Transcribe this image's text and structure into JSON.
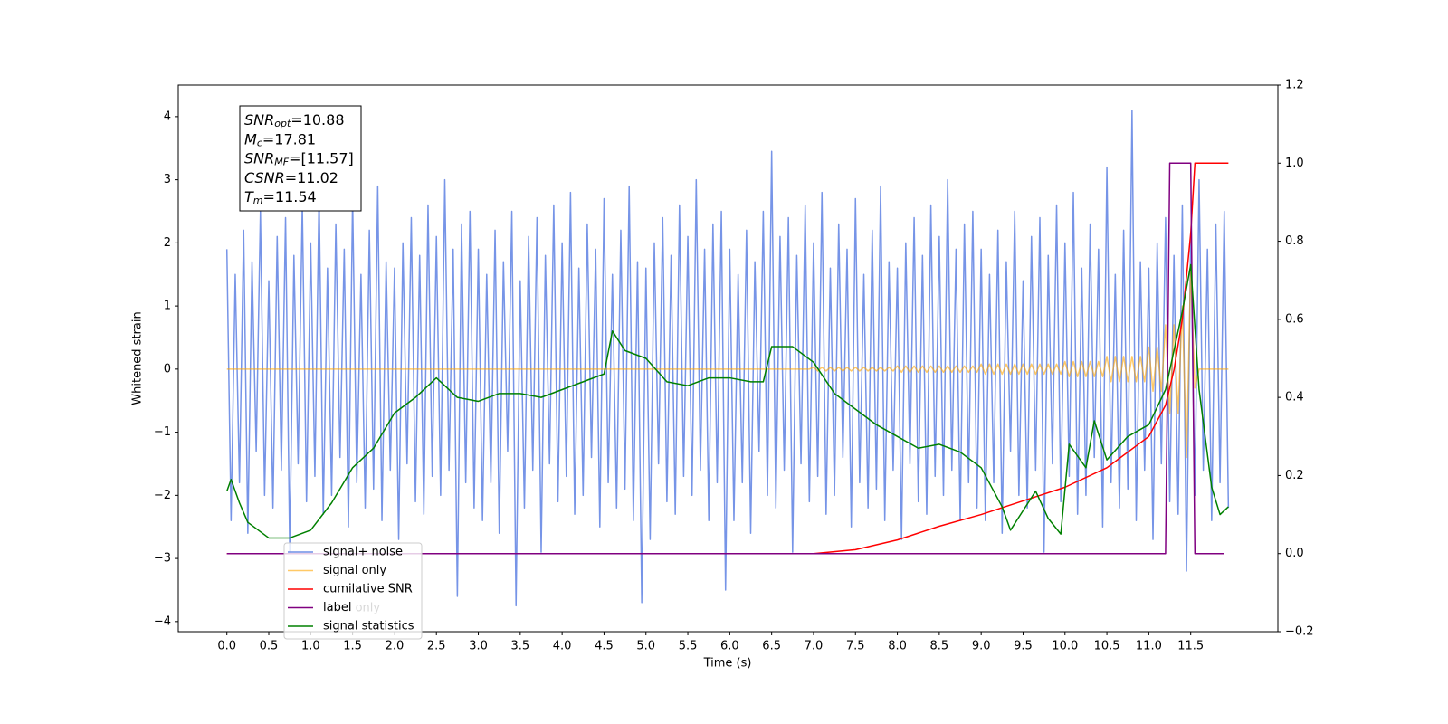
{
  "chart_data": {
    "type": "line",
    "xlabel": "Time (s)",
    "ylabel": "Whitened strain",
    "xlim": [
      -0.58,
      12.54
    ],
    "ylim": [
      -4.16,
      4.5
    ],
    "y2lim": [
      -0.2,
      1.2
    ],
    "xticks": [
      {
        "value": 0,
        "label": "0.0"
      },
      0.5,
      {
        "value": 1,
        "label": "1.0"
      },
      1.5,
      {
        "value": 2,
        "label": "2.0"
      },
      2.5,
      {
        "value": 3,
        "label": "3.0"
      },
      3.5,
      {
        "value": 4,
        "label": "4.0"
      },
      4.5,
      {
        "value": 5,
        "label": "5.0"
      },
      5.5,
      {
        "value": 6,
        "label": "6.0"
      },
      6.5,
      {
        "value": 7,
        "label": "7.0"
      },
      7.5,
      {
        "value": 8,
        "label": "8.0"
      },
      8.5,
      {
        "value": 9,
        "label": "9.0"
      },
      9.5,
      {
        "value": 10,
        "label": "10.0"
      },
      10.5,
      {
        "value": 11,
        "label": "11.0"
      },
      11.5
    ],
    "yticks": [
      {
        "value": -4,
        "label": "−4"
      },
      {
        "value": -3,
        "label": "−3"
      },
      {
        "value": -2,
        "label": "−2"
      },
      {
        "value": -1,
        "label": "−1"
      },
      0,
      1,
      2,
      3,
      4
    ],
    "y2ticks": [
      {
        "value": -0.2,
        "label": "−0.2"
      },
      {
        "value": 0,
        "label": "0.0"
      },
      0.2,
      0.4,
      0.6,
      0.8,
      {
        "value": 1,
        "label": "1.0"
      },
      1.2
    ],
    "annotation": [
      {
        "symbol": "SNR",
        "subscript": "opt",
        "text": "=10.88"
      },
      {
        "symbol": "M",
        "subscript": "c",
        "text": "=17.81"
      },
      {
        "symbol": "SNR",
        "subscript": "MF",
        "text": "=[11.57]"
      },
      {
        "symbol": "CSNR",
        "subscript": "",
        "text": "=11.02"
      },
      {
        "symbol": "T",
        "subscript": "m",
        "text": "=11.54"
      }
    ],
    "hidden_legend_text": "label only",
    "x": [
      0,
      0.05,
      0.1,
      0.15,
      0.2,
      0.25,
      0.3,
      0.35,
      0.4,
      0.45,
      0.5,
      0.55,
      0.6,
      0.65,
      0.7,
      0.75,
      0.8,
      0.85,
      0.9,
      0.95,
      1,
      1.05,
      1.1,
      1.15,
      1.2,
      1.25,
      1.3,
      1.35,
      1.4,
      1.45,
      1.5,
      1.55,
      1.6,
      1.65,
      1.7,
      1.75,
      1.8,
      1.85,
      1.9,
      1.95,
      2,
      2.05,
      2.1,
      2.15,
      2.2,
      2.25,
      2.3,
      2.35,
      2.4,
      2.45,
      2.5,
      2.55,
      2.6,
      2.65,
      2.7,
      2.75,
      2.8,
      2.85,
      2.9,
      2.95,
      3,
      3.05,
      3.1,
      3.15,
      3.2,
      3.25,
      3.3,
      3.35,
      3.4,
      3.45,
      3.5,
      3.55,
      3.6,
      3.65,
      3.7,
      3.75,
      3.8,
      3.85,
      3.9,
      3.95,
      4,
      4.05,
      4.1,
      4.15,
      4.2,
      4.25,
      4.3,
      4.35,
      4.4,
      4.45,
      4.5,
      4.55,
      4.6,
      4.65,
      4.7,
      4.75,
      4.8,
      4.85,
      4.9,
      4.95,
      5,
      5.05,
      5.1,
      5.15,
      5.2,
      5.25,
      5.3,
      5.35,
      5.4,
      5.45,
      5.5,
      5.55,
      5.6,
      5.65,
      5.7,
      5.75,
      5.8,
      5.85,
      5.9,
      5.95,
      6,
      6.05,
      6.1,
      6.15,
      6.2,
      6.25,
      6.3,
      6.35,
      6.4,
      6.45,
      6.5,
      6.55,
      6.6,
      6.65,
      6.7,
      6.75,
      6.8,
      6.85,
      6.9,
      6.95,
      7,
      7.05,
      7.1,
      7.15,
      7.2,
      7.25,
      7.3,
      7.35,
      7.4,
      7.45,
      7.5,
      7.55,
      7.6,
      7.65,
      7.7,
      7.75,
      7.8,
      7.85,
      7.9,
      7.95,
      8,
      8.05,
      8.1,
      8.15,
      8.2,
      8.25,
      8.3,
      8.35,
      8.4,
      8.45,
      8.5,
      8.55,
      8.6,
      8.65,
      8.7,
      8.75,
      8.8,
      8.85,
      8.9,
      8.95,
      9,
      9.05,
      9.1,
      9.15,
      9.2,
      9.25,
      9.3,
      9.35,
      9.4,
      9.45,
      9.5,
      9.55,
      9.6,
      9.65,
      9.7,
      9.75,
      9.8,
      9.85,
      9.9,
      9.95,
      10,
      10.05,
      10.1,
      10.15,
      10.2,
      10.25,
      10.3,
      10.35,
      10.4,
      10.45,
      10.5,
      10.55,
      10.6,
      10.65,
      10.7,
      10.75,
      10.8,
      10.85,
      10.9,
      10.95,
      11,
      11.05,
      11.1,
      11.15,
      11.2,
      11.25,
      11.3,
      11.35,
      11.4,
      11.45,
      11.5,
      11.55,
      11.6,
      11.65,
      11.7,
      11.75,
      11.8,
      11.85,
      11.9,
      11.95
    ],
    "series": [
      {
        "name": "signal+ noise",
        "color": "#6f8ee6",
        "values": [
          1.9,
          -2.4,
          1.5,
          -1.8,
          2.2,
          -2.6,
          1.7,
          -1.3,
          2.5,
          -2.0,
          1.4,
          -2.2,
          2.1,
          -1.6,
          2.4,
          -2.9,
          1.8,
          -1.5,
          2.6,
          -2.1,
          2.0,
          -1.7,
          2.8,
          -2.3,
          1.6,
          -2.0,
          2.3,
          -1.4,
          1.9,
          -2.5,
          2.7,
          -1.8,
          1.5,
          -2.2,
          2.2,
          -1.9,
          2.9,
          -2.4,
          1.7,
          -1.6,
          1.6,
          -2.7,
          2.0,
          -1.5,
          2.4,
          -2.1,
          1.8,
          -2.3,
          2.6,
          -1.7,
          2.1,
          -2.0,
          3.0,
          -1.6,
          1.9,
          -3.6,
          2.3,
          -1.8,
          2.5,
          -2.2,
          1.9,
          -2.4,
          1.5,
          -1.8,
          2.2,
          -2.6,
          1.7,
          -1.3,
          2.5,
          -3.75,
          1.4,
          -2.2,
          2.1,
          -1.6,
          2.4,
          -2.9,
          1.8,
          -1.5,
          2.6,
          -2.1,
          2.0,
          -1.7,
          2.8,
          -2.3,
          1.6,
          -2.0,
          2.3,
          -1.4,
          1.9,
          -2.5,
          2.7,
          -1.8,
          1.5,
          -2.2,
          2.2,
          -1.9,
          2.9,
          -2.4,
          1.7,
          -3.7,
          1.6,
          -2.7,
          2.0,
          -1.5,
          2.4,
          -2.1,
          1.8,
          -2.3,
          2.6,
          -1.7,
          2.1,
          -2.0,
          3.0,
          -1.6,
          1.9,
          -2.4,
          2.3,
          -1.8,
          2.5,
          -3.5,
          1.9,
          -2.4,
          1.5,
          -1.8,
          2.2,
          -2.6,
          1.7,
          -1.3,
          2.5,
          -2.0,
          3.45,
          -2.2,
          2.1,
          -1.6,
          2.4,
          -2.9,
          1.8,
          -1.5,
          2.6,
          -2.1,
          2.0,
          -1.7,
          2.8,
          -2.3,
          1.6,
          -2.0,
          2.3,
          -1.4,
          1.9,
          -2.5,
          2.7,
          -1.8,
          1.5,
          -2.2,
          2.2,
          -1.9,
          2.9,
          -2.4,
          1.7,
          -1.6,
          1.6,
          -2.7,
          2.0,
          -1.5,
          2.4,
          -2.1,
          1.8,
          -2.3,
          2.6,
          -1.7,
          2.1,
          -2.0,
          3.0,
          -1.6,
          1.9,
          -2.4,
          2.3,
          -1.8,
          2.5,
          -2.2,
          1.9,
          -2.4,
          1.5,
          -1.8,
          2.2,
          -2.6,
          1.7,
          -1.3,
          2.5,
          -2.0,
          1.4,
          -2.2,
          2.1,
          -1.6,
          2.4,
          -2.9,
          1.8,
          -1.5,
          2.6,
          -2.1,
          2.0,
          -1.7,
          2.8,
          -2.3,
          1.6,
          -2.0,
          2.3,
          -1.4,
          1.9,
          -2.5,
          3.2,
          -1.8,
          1.5,
          -2.2,
          2.2,
          -1.9,
          4.1,
          -2.4,
          1.7,
          -1.6,
          1.6,
          -2.7,
          2.0,
          -1.5,
          2.4,
          -2.1,
          1.8,
          -2.3,
          2.6,
          -3.2,
          2.1,
          -2.0,
          3.0,
          -1.6,
          1.9,
          -2.4,
          2.3,
          -1.8,
          2.5,
          -2.2
        ]
      },
      {
        "name": "signal only",
        "color": "#ffa500",
        "values": [
          0,
          0,
          0,
          0,
          0,
          0,
          0,
          0,
          0,
          0,
          0,
          0,
          0,
          0,
          0,
          0,
          0,
          0,
          0,
          0,
          0,
          0,
          0,
          0,
          0,
          0,
          0,
          0,
          0,
          0,
          0,
          0,
          0,
          0,
          0,
          0,
          0,
          0,
          0,
          0,
          0,
          0,
          0,
          0,
          0,
          0,
          0,
          0,
          0,
          0,
          0,
          0,
          0,
          0,
          0,
          0,
          0,
          0,
          0,
          0,
          0,
          0,
          0,
          0,
          0,
          0,
          0,
          0,
          0,
          0,
          0,
          0,
          0,
          0,
          0,
          0,
          0,
          0,
          0,
          0,
          0,
          0,
          0,
          0,
          0,
          0,
          0,
          0,
          0,
          0,
          0,
          0,
          0,
          0,
          0,
          0,
          0,
          0,
          0,
          0,
          0,
          0,
          0,
          0,
          0,
          0,
          0,
          0,
          0,
          0,
          0,
          0,
          0,
          0,
          0,
          0,
          0,
          0,
          0,
          0,
          0,
          0,
          0,
          0,
          0,
          0,
          0,
          0,
          0,
          0,
          0,
          0,
          0,
          0,
          0,
          0,
          0,
          0,
          0,
          0,
          0.03,
          -0.03,
          0.03,
          -0.03,
          0.03,
          -0.03,
          0.03,
          -0.03,
          0.03,
          -0.03,
          0.03,
          -0.03,
          0.03,
          -0.03,
          0.03,
          -0.03,
          0.03,
          -0.03,
          0.03,
          -0.03,
          0.05,
          -0.05,
          0.05,
          -0.05,
          0.05,
          -0.05,
          0.05,
          -0.05,
          0.05,
          -0.05,
          0.05,
          -0.05,
          0.05,
          -0.05,
          0.05,
          -0.05,
          0.05,
          -0.05,
          0.05,
          -0.05,
          0.08,
          -0.08,
          0.08,
          -0.08,
          0.08,
          -0.08,
          0.08,
          -0.08,
          0.08,
          -0.08,
          0.08,
          -0.08,
          0.08,
          -0.08,
          0.08,
          -0.08,
          0.08,
          -0.08,
          0.08,
          -0.08,
          0.12,
          -0.12,
          0.12,
          -0.12,
          0.12,
          -0.12,
          0.12,
          -0.12,
          0.12,
          -0.12,
          0.2,
          -0.2,
          0.2,
          -0.2,
          0.2,
          -0.2,
          0.2,
          -0.2,
          0.2,
          -0.2,
          0.35,
          -0.35,
          0.35,
          -0.35,
          0.7,
          -0.7,
          0.7,
          -0.7,
          1.0,
          -1.4,
          1.6,
          -0.3,
          0,
          0,
          0,
          0,
          0,
          0,
          0,
          0
        ]
      },
      {
        "name": "cumilative SNR",
        "color": "#ff0000",
        "axis": "y2",
        "x": [
          0,
          7.0,
          7.5,
          8.0,
          8.5,
          9.0,
          9.5,
          10.0,
          10.5,
          11.0,
          11.2,
          11.3,
          11.4,
          11.5,
          11.55,
          11.95
        ],
        "values": [
          0,
          0,
          0.01,
          0.035,
          0.07,
          0.1,
          0.135,
          0.17,
          0.22,
          0.3,
          0.38,
          0.47,
          0.6,
          0.82,
          1.0,
          1.0
        ]
      },
      {
        "name": "label",
        "color": "#800080",
        "axis": "y2",
        "x": [
          0,
          11.2,
          11.25,
          11.5,
          11.55,
          11.9
        ],
        "values": [
          0,
          0,
          1,
          1,
          0,
          0
        ]
      },
      {
        "name": "signal statistics",
        "color": "#008000",
        "axis": "y2",
        "x": [
          0,
          0.05,
          0.15,
          0.25,
          0.5,
          0.75,
          1.0,
          1.25,
          1.5,
          1.75,
          2.0,
          2.25,
          2.5,
          2.75,
          3.0,
          3.25,
          3.5,
          3.75,
          4.0,
          4.25,
          4.5,
          4.6,
          4.75,
          5.0,
          5.25,
          5.5,
          5.75,
          6.0,
          6.25,
          6.4,
          6.5,
          6.75,
          7.0,
          7.25,
          7.5,
          7.75,
          8.0,
          8.25,
          8.5,
          8.75,
          9.0,
          9.25,
          9.35,
          9.5,
          9.65,
          9.8,
          9.95,
          10.05,
          10.25,
          10.35,
          10.5,
          10.75,
          11.0,
          11.2,
          11.4,
          11.5,
          11.6,
          11.75,
          11.85,
          11.95
        ],
        "values": [
          0.16,
          0.19,
          0.13,
          0.08,
          0.04,
          0.04,
          0.06,
          0.13,
          0.22,
          0.27,
          0.36,
          0.4,
          0.45,
          0.4,
          0.39,
          0.41,
          0.41,
          0.4,
          0.42,
          0.44,
          0.46,
          0.57,
          0.52,
          0.5,
          0.44,
          0.43,
          0.45,
          0.45,
          0.44,
          0.44,
          0.53,
          0.53,
          0.49,
          0.41,
          0.37,
          0.33,
          0.3,
          0.27,
          0.28,
          0.26,
          0.22,
          0.12,
          0.06,
          0.11,
          0.16,
          0.09,
          0.05,
          0.28,
          0.22,
          0.34,
          0.24,
          0.3,
          0.33,
          0.42,
          0.62,
          0.74,
          0.42,
          0.17,
          0.1,
          0.12
        ]
      }
    ]
  }
}
